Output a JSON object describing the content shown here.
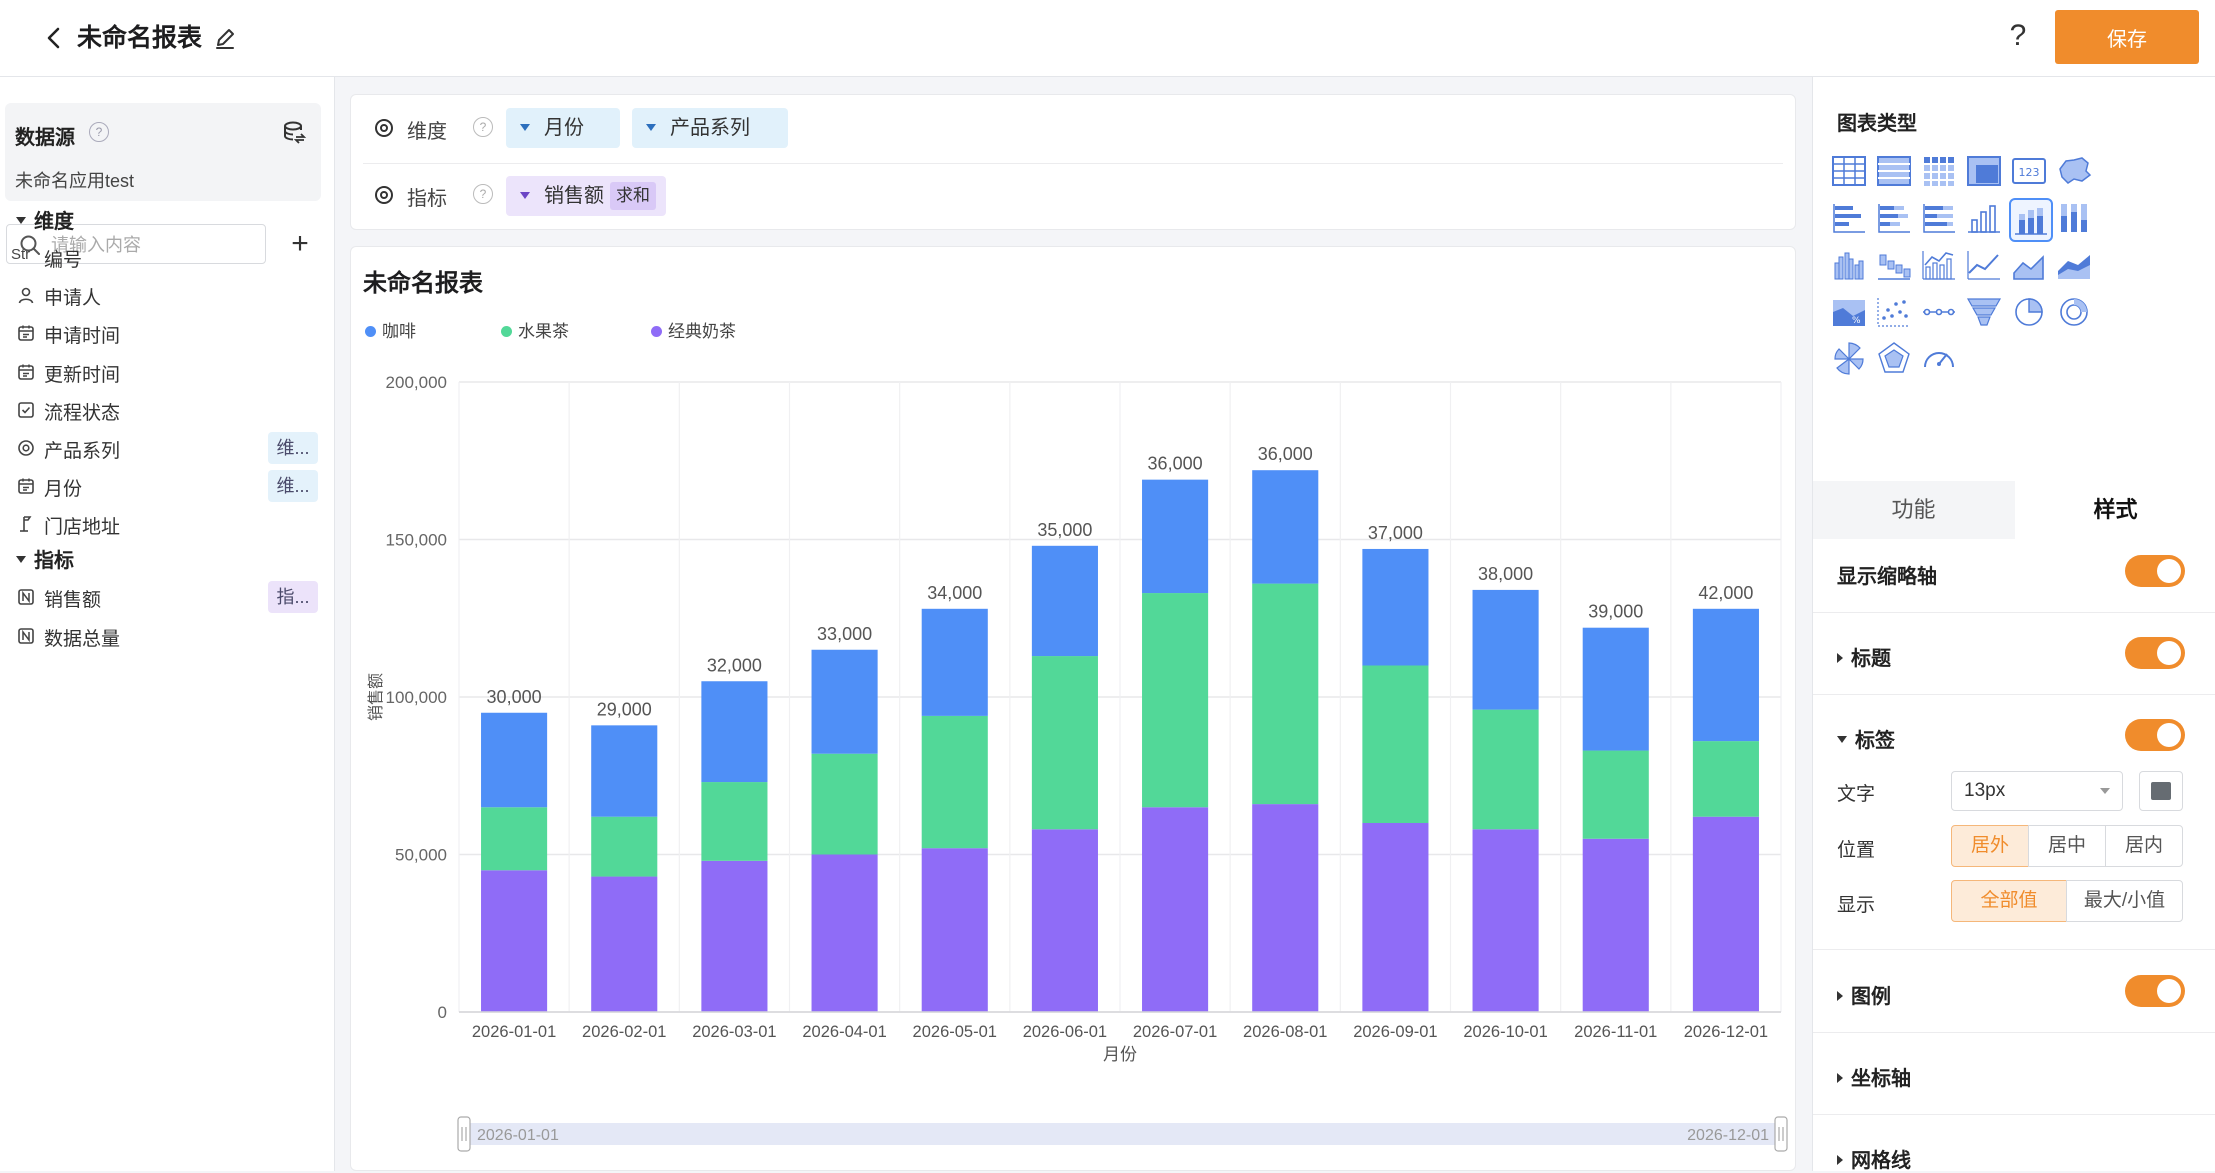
{
  "header": {
    "title": "未命名报表",
    "help_label": "?",
    "save_label": "保存"
  },
  "left": {
    "datasource_label": "数据源",
    "datasource_help": "?",
    "datasource_name": "未命名应用test",
    "search_placeholder": "请输入内容",
    "add_label": "+",
    "dimensions_header": "维度",
    "dimensions": [
      {
        "icon": "Str",
        "label": "编号",
        "tag": ""
      },
      {
        "icon": "user-icon",
        "label": "申请人",
        "tag": ""
      },
      {
        "icon": "calendar-icon",
        "label": "申请时间",
        "tag": ""
      },
      {
        "icon": "calendar-icon",
        "label": "更新时间",
        "tag": ""
      },
      {
        "icon": "checkbox-icon",
        "label": "流程状态",
        "tag": ""
      },
      {
        "icon": "target-icon",
        "label": "产品系列",
        "tag": "维..."
      },
      {
        "icon": "calendar-icon",
        "label": "月份",
        "tag": "维..."
      },
      {
        "icon": "location-icon",
        "label": "门店地址",
        "tag": ""
      }
    ],
    "measures_header": "指标",
    "measures": [
      {
        "icon": "number-icon",
        "label": "销售额",
        "tag": "指..."
      },
      {
        "icon": "number-icon",
        "label": "数据总量",
        "tag": ""
      }
    ]
  },
  "config": {
    "dimension_label": "维度",
    "dimension_pills": [
      "月份",
      "产品系列"
    ],
    "measure_label": "指标",
    "measure_pill": "销售额",
    "measure_agg": "求和"
  },
  "chart": {
    "title": "未命名报表"
  },
  "chart_data": {
    "type": "bar",
    "stacked": true,
    "title": "未命名报表",
    "xlabel": "月份",
    "ylabel": "销售额",
    "ylim": [
      0,
      200000
    ],
    "yticks": [
      0,
      50000,
      100000,
      150000,
      200000
    ],
    "ytick_labels": [
      "0",
      "50,000",
      "100,000",
      "150,000",
      "200,000"
    ],
    "legend_position": "top-left",
    "grid": true,
    "categories": [
      "2026-01-01",
      "2026-02-01",
      "2026-03-01",
      "2026-04-01",
      "2026-05-01",
      "2026-06-01",
      "2026-07-01",
      "2026-08-01",
      "2026-09-01",
      "2026-10-01",
      "2026-11-01",
      "2026-12-01"
    ],
    "series": [
      {
        "name": "经典奶茶",
        "color": "#8f6cf7",
        "values": [
          45000,
          43000,
          48000,
          50000,
          52000,
          58000,
          65000,
          66000,
          60000,
          58000,
          55000,
          62000
        ]
      },
      {
        "name": "水果茶",
        "color": "#52d898",
        "values": [
          20000,
          19000,
          25000,
          32000,
          42000,
          55000,
          68000,
          70000,
          50000,
          38000,
          28000,
          24000
        ]
      },
      {
        "name": "咖啡",
        "color": "#4f8ff7",
        "values": [
          30000,
          29000,
          32000,
          33000,
          34000,
          35000,
          36000,
          36000,
          37000,
          38000,
          39000,
          42000
        ]
      }
    ],
    "legend_order": [
      "咖啡",
      "水果茶",
      "经典奶茶"
    ],
    "zoom_range": [
      "2026-01-01",
      "2026-12-01"
    ]
  },
  "right": {
    "chart_type_label": "图表类型",
    "tabs": [
      "功能",
      "样式"
    ],
    "active_tab": "样式",
    "show_zoom_axis": "显示缩略轴",
    "title_section": "标题",
    "label_section": "标签",
    "font_label": "文字",
    "font_value": "13px",
    "position_label": "位置",
    "position_options": [
      "居外",
      "居中",
      "居内"
    ],
    "display_label": "显示",
    "display_options": [
      "全部值",
      "最大/小值"
    ],
    "legend_section": "图例",
    "axis_section": "坐标轴",
    "grid_section": "网格线",
    "accent_color": "#f08c2c"
  }
}
